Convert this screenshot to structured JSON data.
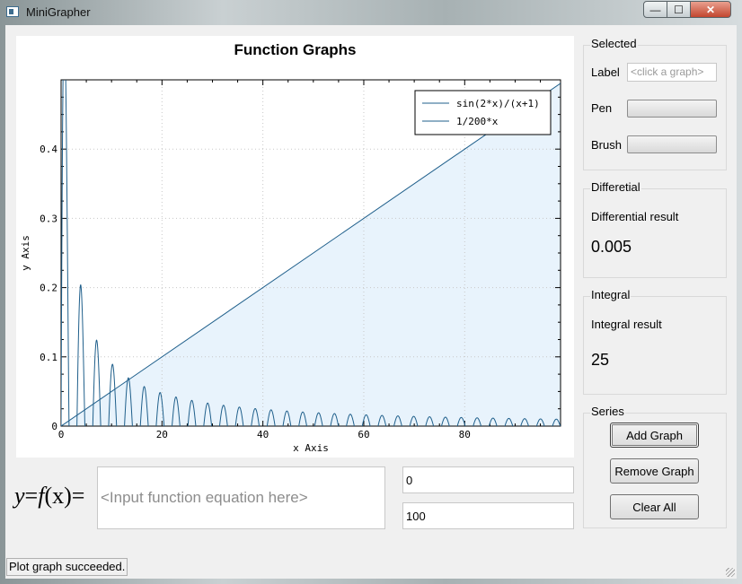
{
  "window": {
    "title": "MiniGrapher",
    "min_glyph": "—",
    "max_glyph": "☐",
    "close_glyph": "✕"
  },
  "plot": {
    "title": "Function Graphs",
    "xlabel": "x Axis",
    "ylabel": "y Axis",
    "xticks": [
      "0",
      "20",
      "40",
      "60",
      "80"
    ],
    "yticks": [
      "0",
      "0.1",
      "0.2",
      "0.3",
      "0.4"
    ],
    "legend": [
      "sin(2*x)/(x+1)",
      "1/200*x"
    ]
  },
  "chart_data": {
    "type": "line",
    "title": "Function Graphs",
    "xlabel": "x Axis",
    "ylabel": "y Axis",
    "xlim": [
      0,
      99
    ],
    "ylim": [
      0,
      0.5
    ],
    "grid": true,
    "legend_position": "top-right",
    "series": [
      {
        "name": "sin(2*x)/(x+1)",
        "function": "sin(2*x)/(x+1)",
        "color": "#1f5f8b"
      },
      {
        "name": "1/200*x",
        "function": "1/200*x",
        "color": "#1f5f8b",
        "fill": "#e8f3fc"
      }
    ]
  },
  "selected": {
    "group_title": "Selected",
    "label_label": "Label",
    "label_placeholder": "<click a graph>",
    "pen_label": "Pen",
    "brush_label": "Brush"
  },
  "differential": {
    "group_title": "Differetial",
    "result_label": "Differential result",
    "value": "0.005"
  },
  "integral": {
    "group_title": "Integral",
    "result_label": "Integral result",
    "value": "25"
  },
  "series": {
    "group_title": "Series",
    "add": "Add Graph",
    "remove": "Remove Graph",
    "clear": "Clear All"
  },
  "input": {
    "placeholder": "<Input function equation here>",
    "range_start": "0",
    "range_end": "100"
  },
  "formula": {
    "y": "y",
    "eq": "=",
    "f": "f",
    "x": "(x)",
    "eq2": "="
  },
  "status": "Plot graph succeeded."
}
